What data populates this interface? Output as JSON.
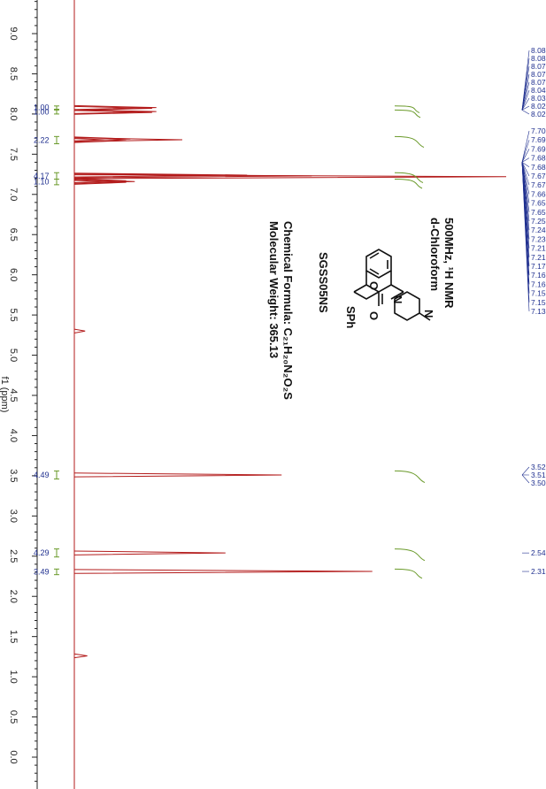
{
  "chart_data": {
    "type": "line",
    "title": "500MHz, ¹H NMR",
    "subtitle": "d-Chloroform",
    "xlabel": "f1 (ppm)",
    "ylabel": "",
    "xlim": [
      9.5,
      -0.3
    ],
    "x_ticks": [
      "9.0",
      "8.5",
      "8.0",
      "7.5",
      "7.0",
      "6.5",
      "6.0",
      "5.5",
      "5.0",
      "4.5",
      "4.0",
      "3.5",
      "3.0",
      "2.5",
      "2.0",
      "1.5",
      "1.0",
      "0.5",
      "0.0"
    ],
    "x_tick_values": [
      9.0,
      8.5,
      8.0,
      7.5,
      7.0,
      6.5,
      6.0,
      5.5,
      5.0,
      4.5,
      4.0,
      3.5,
      3.0,
      2.5,
      2.0,
      1.5,
      1.0,
      0.5,
      0.0
    ],
    "colors": {
      "spectrum": "#b31b1b",
      "integral_curve": "#6a9a2a",
      "labels": "#1f2f8f",
      "baseline": "#b31b1b"
    },
    "peaks": [
      {
        "ppm": 8.08,
        "height": 0.19
      },
      {
        "ppm": 8.07,
        "height": 0.18
      },
      {
        "ppm": 8.03,
        "height": 0.19
      },
      {
        "ppm": 8.02,
        "height": 0.18
      },
      {
        "ppm": 7.69,
        "height": 0.13
      },
      {
        "ppm": 7.68,
        "height": 0.25
      },
      {
        "ppm": 7.67,
        "height": 0.12
      },
      {
        "ppm": 7.24,
        "height": 0.4
      },
      {
        "ppm": 7.23,
        "height": 0.55
      },
      {
        "ppm": 7.22,
        "height": 1.0
      },
      {
        "ppm": 7.17,
        "height": 0.12
      },
      {
        "ppm": 7.16,
        "height": 0.14
      },
      {
        "ppm": 7.15,
        "height": 0.12
      },
      {
        "ppm": 5.3,
        "height": 0.025
      },
      {
        "ppm": 3.51,
        "height": 0.48
      },
      {
        "ppm": 2.54,
        "height": 0.35
      },
      {
        "ppm": 2.31,
        "height": 0.69
      },
      {
        "ppm": 1.26,
        "height": 0.03
      }
    ],
    "integrals": [
      {
        "from": 8.1,
        "to": 8.06,
        "value": "1.00"
      },
      {
        "from": 8.05,
        "to": 8.0,
        "value": "1.00"
      },
      {
        "from": 7.72,
        "to": 7.63,
        "value": "2.22"
      },
      {
        "from": 7.27,
        "to": 7.19,
        "value": "4.17"
      },
      {
        "from": 7.19,
        "to": 7.12,
        "value": "1.10"
      },
      {
        "from": 3.56,
        "to": 3.46,
        "value": "4.49"
      },
      {
        "from": 2.59,
        "to": 2.49,
        "value": "4.29"
      },
      {
        "from": 2.34,
        "to": 2.27,
        "value": "3.49"
      }
    ],
    "peak_labels_aromatic": [
      "8.08",
      "8.08",
      "8.07",
      "8.07",
      "8.07",
      "8.04",
      "8.03",
      "8.02",
      "8.02",
      "7.70",
      "7.69",
      "7.69",
      "7.68",
      "7.68",
      "7.67",
      "7.67",
      "7.66",
      "7.65",
      "7.65",
      "7.25",
      "7.24",
      "7.23",
      "7.21",
      "7.21",
      "7.17",
      "7.16",
      "7.16",
      "7.15",
      "7.15",
      "7.13"
    ],
    "peak_labels_mid": [
      "3.52",
      "3.51",
      "3.50"
    ],
    "peak_labels_single": [
      {
        "label": "2.54",
        "ppm": 2.54
      },
      {
        "label": "2.31",
        "ppm": 2.31
      }
    ]
  },
  "info": {
    "line1": "500MHz, ¹H NMR",
    "line2": "d-Chloroform",
    "compound_id": "SGSS05NS",
    "formula": "Chemical Formula: C₂₁H₂₀N₂O₂S",
    "mw": "Molecular Weight: 365.13"
  },
  "molecule": {
    "label_o_top": "O",
    "label_o_bottom": "O",
    "label_n1": "N",
    "label_n2": "N",
    "label_sph": "SPh"
  }
}
